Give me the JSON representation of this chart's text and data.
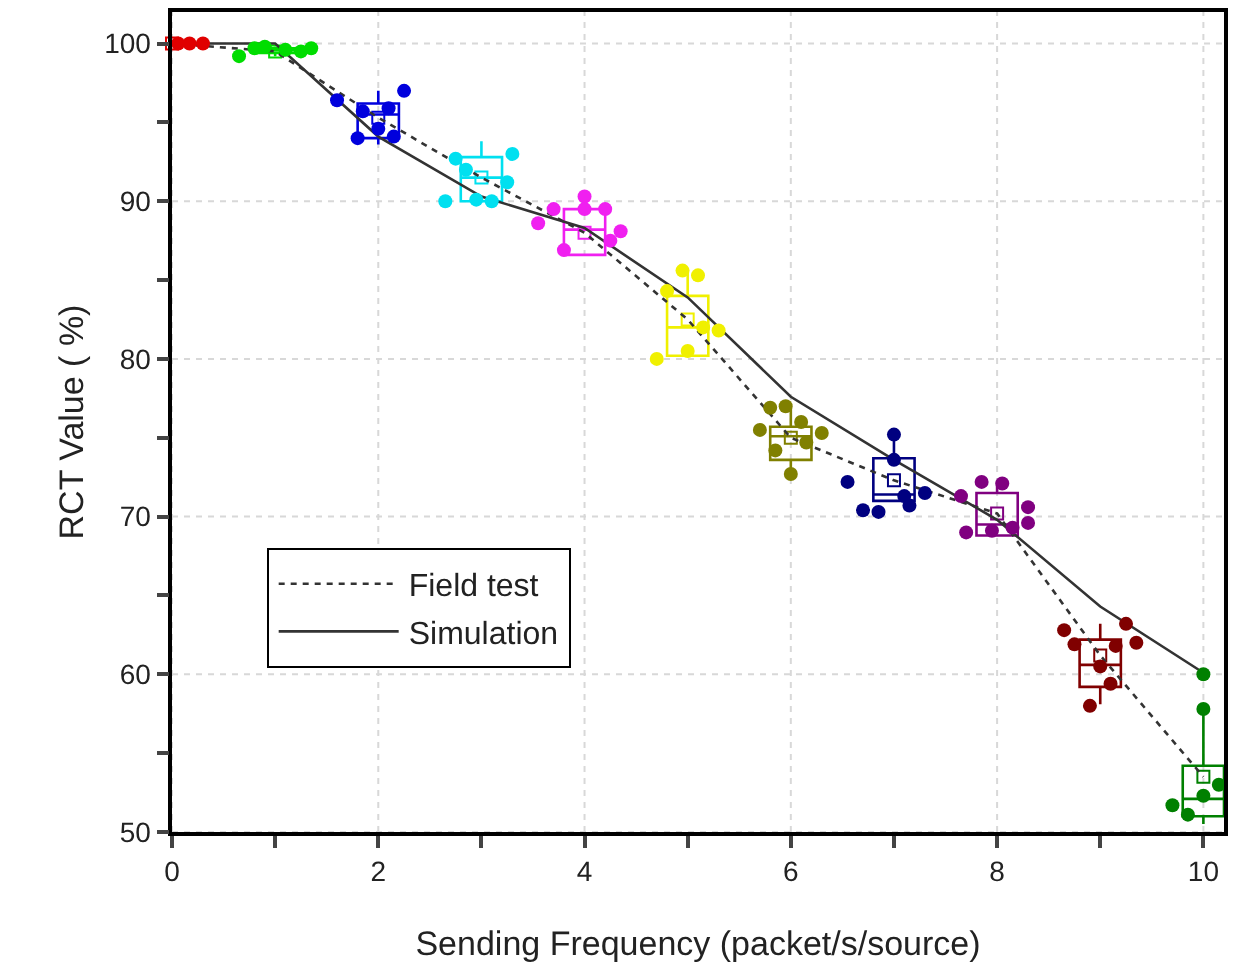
{
  "chart_data": {
    "type": "box",
    "xlabel": "Sending Frequency (packet/s/source)",
    "ylabel": "RCT Value ( %)",
    "x": [
      0,
      1,
      2,
      3,
      4,
      5,
      6,
      7,
      8,
      9,
      10
    ],
    "colors": [
      "#e00000",
      "#00dd00",
      "#0000dd",
      "#00e0f0",
      "#f020f0",
      "#f0f000",
      "#808000",
      "#000080",
      "#800080",
      "#800000",
      "#008000"
    ],
    "boxes": [
      {
        "low": 100,
        "q1": 100,
        "median": 100,
        "q3": 100,
        "high": 100,
        "mean": 100
      },
      {
        "low": 99.2,
        "q1": 99.4,
        "median": 99.6,
        "q3": 99.7,
        "high": 99.8,
        "mean": 99.5
      },
      {
        "low": 93.6,
        "q1": 94.0,
        "median": 95.5,
        "q3": 96.2,
        "high": 97.0,
        "mean": 95.3
      },
      {
        "low": 90.0,
        "q1": 90.0,
        "median": 91.5,
        "q3": 92.8,
        "high": 93.8,
        "mean": 91.5
      },
      {
        "low": 86.6,
        "q1": 86.6,
        "median": 88.2,
        "q3": 89.5,
        "high": 90.3,
        "mean": 88.0
      },
      {
        "low": 80.2,
        "q1": 80.2,
        "median": 82.0,
        "q3": 84.0,
        "high": 85.7,
        "mean": 82.5
      },
      {
        "low": 72.7,
        "q1": 73.6,
        "median": 75.1,
        "q3": 75.7,
        "high": 77.0,
        "mean": 75.0
      },
      {
        "low": 71.0,
        "q1": 71.0,
        "median": 71.4,
        "q3": 73.7,
        "high": 75.2,
        "mean": 72.3
      },
      {
        "low": 68.8,
        "q1": 68.8,
        "median": 69.5,
        "q3": 71.5,
        "high": 72.2,
        "mean": 70.2
      },
      {
        "low": 58.1,
        "q1": 59.2,
        "median": 60.6,
        "q3": 62.2,
        "high": 63.2,
        "mean": 61.2
      },
      {
        "low": 50.5,
        "q1": 51.0,
        "median": 52.1,
        "q3": 54.2,
        "high": 57.9,
        "mean": 53.5
      }
    ],
    "series": [
      {
        "name": "Field test",
        "type": "line",
        "line_style": "dotted",
        "color": "#333333",
        "x": [
          0,
          1,
          2,
          3,
          4,
          5,
          6,
          7,
          8,
          9,
          10
        ],
        "values": [
          100,
          99.5,
          95.3,
          91.5,
          88.0,
          82.5,
          75.0,
          72.3,
          70.2,
          61.2,
          53.5
        ]
      },
      {
        "name": "Simulation",
        "type": "line",
        "line_style": "solid",
        "color": "#333333",
        "x": [
          0,
          1,
          2,
          3,
          4,
          5,
          6,
          7,
          8,
          9,
          10
        ],
        "values": [
          100,
          100,
          94.1,
          90.3,
          88.3,
          83.9,
          77.6,
          73.6,
          69.8,
          64.3,
          60.1
        ]
      },
      {
        "type": "scatter",
        "marker": "circle",
        "x": [
          0.06,
          0.17,
          0.3,
          0.65,
          0.8,
          0.9,
          1.1,
          1.25,
          1.35,
          1.6,
          1.85,
          1.8,
          2.0,
          2.15,
          2.25,
          2.1,
          2.65,
          2.75,
          2.85,
          2.95,
          3.1,
          3.25,
          3.3,
          3.55,
          3.7,
          3.8,
          4.0,
          4.0,
          4.2,
          4.25,
          4.35,
          4.7,
          4.8,
          4.95,
          5.0,
          5.1,
          5.15,
          5.3,
          5.7,
          5.8,
          5.85,
          5.95,
          6.1,
          6.0,
          6.15,
          6.3,
          6.55,
          6.7,
          6.85,
          7.0,
          7.0,
          7.15,
          7.3,
          7.1,
          7.65,
          7.7,
          7.85,
          7.95,
          8.05,
          8.15,
          8.3,
          8.3,
          8.65,
          8.75,
          8.9,
          9.0,
          9.15,
          9.1,
          9.25,
          9.35,
          9.7,
          9.85,
          10.0,
          10.0,
          10.0,
          10.15
        ],
        "values": [
          100,
          100,
          100,
          99.2,
          99.7,
          99.8,
          99.6,
          99.5,
          99.7,
          96.4,
          95.7,
          94.0,
          94.6,
          94.1,
          97.0,
          95.9,
          90.0,
          92.7,
          92.0,
          90.1,
          90.0,
          91.2,
          93.0,
          88.6,
          89.5,
          86.9,
          90.3,
          89.5,
          89.5,
          87.5,
          88.1,
          80.0,
          84.3,
          85.6,
          80.5,
          85.3,
          82.0,
          81.8,
          75.5,
          76.9,
          74.2,
          77.0,
          76.0,
          72.7,
          74.7,
          75.3,
          72.2,
          70.4,
          70.3,
          75.2,
          73.6,
          70.7,
          71.5,
          71.3,
          71.3,
          69.0,
          72.2,
          69.1,
          72.1,
          69.3,
          70.6,
          69.6,
          62.8,
          61.9,
          58.0,
          60.5,
          61.8,
          59.4,
          63.2,
          62.0,
          51.7,
          51.1,
          52.3,
          57.8,
          60.0,
          53.0
        ],
        "colors": [
          "#e00000",
          "#e00000",
          "#e00000",
          "#00dd00",
          "#00dd00",
          "#00dd00",
          "#00dd00",
          "#00dd00",
          "#00dd00",
          "#0000dd",
          "#0000dd",
          "#0000dd",
          "#0000dd",
          "#0000dd",
          "#0000dd",
          "#0000dd",
          "#00e0f0",
          "#00e0f0",
          "#00e0f0",
          "#00e0f0",
          "#00e0f0",
          "#00e0f0",
          "#00e0f0",
          "#f020f0",
          "#f020f0",
          "#f020f0",
          "#f020f0",
          "#f020f0",
          "#f020f0",
          "#f020f0",
          "#f020f0",
          "#f0f000",
          "#f0f000",
          "#f0f000",
          "#f0f000",
          "#f0f000",
          "#f0f000",
          "#f0f000",
          "#808000",
          "#808000",
          "#808000",
          "#808000",
          "#808000",
          "#808000",
          "#808000",
          "#808000",
          "#000080",
          "#000080",
          "#000080",
          "#000080",
          "#000080",
          "#000080",
          "#000080",
          "#000080",
          "#800080",
          "#800080",
          "#800080",
          "#800080",
          "#800080",
          "#800080",
          "#800080",
          "#800080",
          "#800000",
          "#800000",
          "#800000",
          "#800000",
          "#800000",
          "#800000",
          "#800000",
          "#800000",
          "#008000",
          "#008000",
          "#008000",
          "#008000",
          "#008000",
          "#008000"
        ]
      }
    ],
    "xlim": [
      0,
      10.2
    ],
    "xticks": [
      0,
      {
        "value": 1,
        "label": null
      },
      2,
      {
        "value": 3,
        "label": null
      },
      4,
      {
        "value": 5,
        "label": null
      },
      6,
      {
        "value": 7,
        "label": null
      },
      8,
      {
        "value": 9,
        "label": null
      },
      10
    ],
    "ylim": [
      50,
      102
    ],
    "yticks": [
      50,
      {
        "value": 55,
        "label": null
      },
      60,
      {
        "value": 65,
        "label": null
      },
      70,
      {
        "value": 75,
        "label": null
      },
      80,
      {
        "value": 85,
        "label": null
      },
      90,
      {
        "value": 95,
        "label": null
      },
      100
    ],
    "grid": true,
    "legend": "bottom left"
  }
}
